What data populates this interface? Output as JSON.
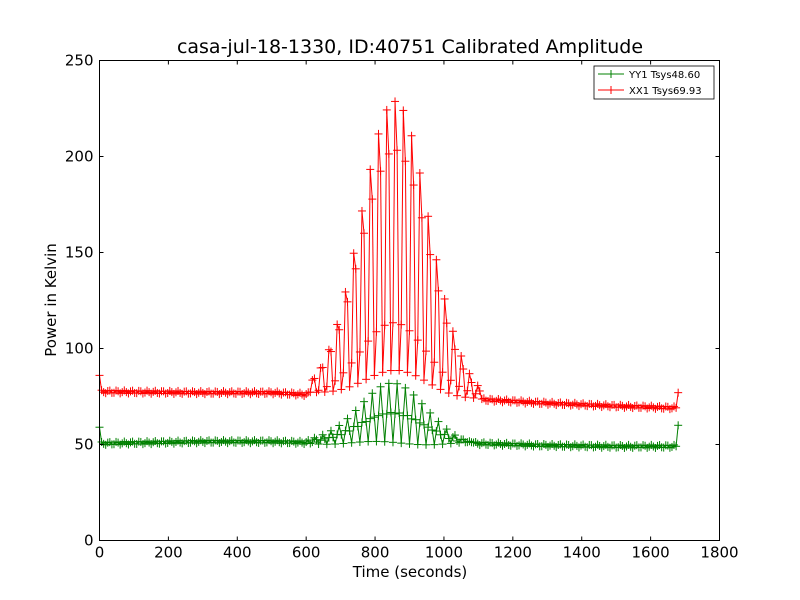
{
  "chart_data": {
    "type": "scatter",
    "title": "casa-jul-18-1330, ID:40751 Calibrated Amplitude",
    "xlabel": "Time (seconds)",
    "ylabel": "Power in Kelvin",
    "xlim": [
      0,
      1800
    ],
    "ylim": [
      0,
      250
    ],
    "xticks": [
      0,
      200,
      400,
      600,
      800,
      1000,
      1200,
      1400,
      1600,
      1800
    ],
    "yticks": [
      0,
      50,
      100,
      150,
      200,
      250
    ],
    "grid": false,
    "legend_position": "top-right",
    "sample_interval": 6,
    "series": [
      {
        "name": "YY1 Tsys48.60",
        "color": "#008000",
        "baseline": [
          [
            0,
            50.5
          ],
          [
            300,
            51.5
          ],
          [
            500,
            51.5
          ],
          [
            600,
            51
          ],
          [
            1100,
            50.5
          ],
          [
            1300,
            49.5
          ],
          [
            1500,
            49
          ],
          [
            1680,
            49
          ]
        ],
        "peak": {
          "start": 600,
          "center": 850,
          "end": 1090,
          "height": 82
        },
        "edge_points": [
          [
            0,
            59
          ],
          [
            1683,
            60
          ]
        ]
      },
      {
        "name": "XX1 Tsys69.93",
        "color": "#ff0000",
        "baseline": [
          [
            0,
            77.5
          ],
          [
            300,
            77
          ],
          [
            500,
            77
          ],
          [
            600,
            76
          ],
          [
            1100,
            73.5
          ],
          [
            1300,
            71.5
          ],
          [
            1500,
            70
          ],
          [
            1680,
            69
          ]
        ],
        "peak": {
          "start": 600,
          "center": 858,
          "end": 1110,
          "height": 242
        },
        "edge_points": [
          [
            0,
            86
          ],
          [
            1683,
            77
          ]
        ]
      }
    ]
  }
}
